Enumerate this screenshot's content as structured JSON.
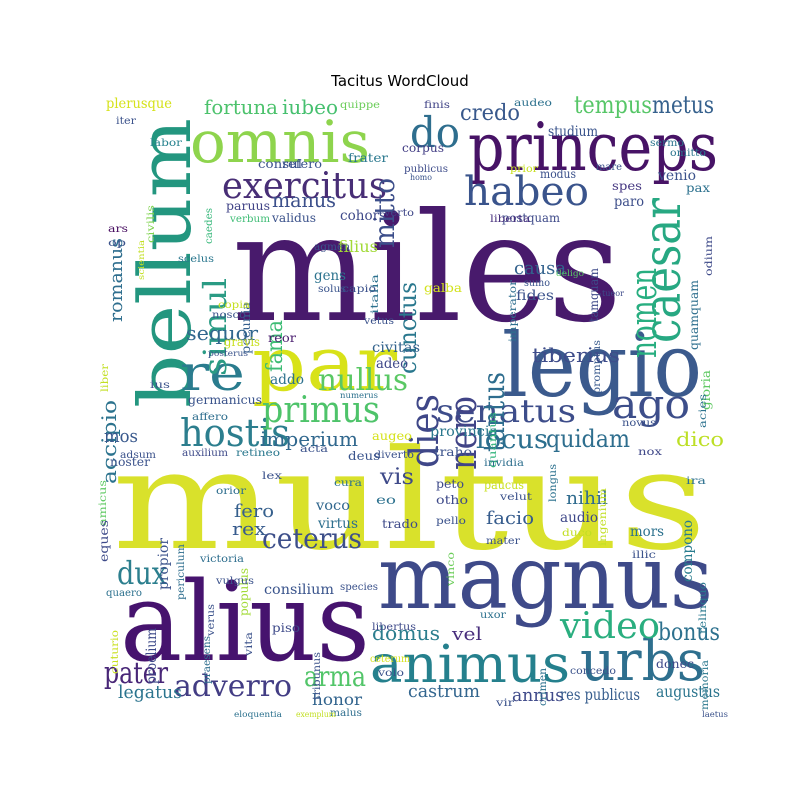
{
  "chart_data": {
    "type": "wordcloud",
    "title": "Tacitus WordCloud",
    "palette": [
      "#440154",
      "#3b528b",
      "#21918c",
      "#5ec962",
      "#fde725"
    ],
    "words": [
      {
        "text": "multus",
        "color": "#d9e12b"
      },
      {
        "text": "miles",
        "color": "#481a6c"
      },
      {
        "text": "alius",
        "color": "#46136e"
      },
      {
        "text": "magnus",
        "color": "#3e4a89"
      },
      {
        "text": "legio",
        "color": "#3b5a8d"
      },
      {
        "text": "princeps",
        "color": "#471366"
      },
      {
        "text": "bellum",
        "color": "#23967f"
      },
      {
        "text": "par",
        "color": "#d8e219"
      },
      {
        "text": "omnis",
        "color": "#8ed44d"
      },
      {
        "text": "caesar",
        "color": "#27a882"
      },
      {
        "text": "urbs",
        "color": "#2e6f8e"
      },
      {
        "text": "animus",
        "color": "#25808d"
      },
      {
        "text": "re",
        "color": "#2a7c8e"
      },
      {
        "text": "exercitus",
        "color": "#482e76"
      },
      {
        "text": "habeo",
        "color": "#3a548c"
      },
      {
        "text": "senatus",
        "color": "#3d4d8a"
      },
      {
        "text": "hostis",
        "color": "#2c7e8e"
      },
      {
        "text": "primus",
        "color": "#4ec36a"
      },
      {
        "text": "video",
        "color": "#2aae7f"
      },
      {
        "text": "dies",
        "color": "#3f4788"
      },
      {
        "text": "nero",
        "color": "#414487"
      },
      {
        "text": "ago",
        "color": "#3d4e8a"
      },
      {
        "text": "do",
        "color": "#2e6e8e"
      },
      {
        "text": "nomen",
        "color": "#28ae80"
      },
      {
        "text": "simul",
        "color": "#2a9b84"
      },
      {
        "text": "ceterus",
        "color": "#3d4f8a"
      },
      {
        "text": "locus",
        "color": "#2b6f8e"
      },
      {
        "text": "adverro",
        "color": "#433d84"
      },
      {
        "text": "nullus",
        "color": "#5ac864"
      },
      {
        "text": "dux",
        "color": "#2c7f8e"
      },
      {
        "text": "pater",
        "color": "#482677"
      },
      {
        "text": "tantus",
        "color": "#2e6d8e"
      },
      {
        "text": "mitto",
        "color": "#3c4e8a"
      },
      {
        "text": "cunctus",
        "color": "#2a788e"
      },
      {
        "text": "arma",
        "color": "#52c569"
      },
      {
        "text": "bonus",
        "color": "#2d718e"
      },
      {
        "text": "quidam",
        "color": "#2e6e8e"
      },
      {
        "text": "tempus",
        "color": "#56c667"
      },
      {
        "text": "metus",
        "color": "#36618d"
      },
      {
        "text": "credo",
        "color": "#38588c"
      },
      {
        "text": "fortuna",
        "color": "#4cc26c"
      },
      {
        "text": "iubeo",
        "color": "#46c06f"
      },
      {
        "text": "imperium",
        "color": "#31688e"
      },
      {
        "text": "sequor",
        "color": "#31678e"
      },
      {
        "text": "fama",
        "color": "#3dbc74"
      },
      {
        "text": "vis",
        "color": "#3e4a89"
      },
      {
        "text": "dico",
        "color": "#bddf26"
      },
      {
        "text": "domus",
        "color": "#2c7e8e"
      },
      {
        "text": "tiberius",
        "color": "#3e4c8a"
      },
      {
        "text": "manus",
        "color": "#3c508b"
      },
      {
        "text": "causa",
        "color": "#33628d"
      },
      {
        "text": "castrum",
        "color": "#32658e"
      },
      {
        "text": "legatus",
        "color": "#2b748e"
      },
      {
        "text": "romanus",
        "color": "#2e6e8e"
      },
      {
        "text": "accipio",
        "color": "#2c738e"
      },
      {
        "text": "fero",
        "color": "#36608d"
      },
      {
        "text": "rex",
        "color": "#375b8d"
      },
      {
        "text": "facio",
        "color": "#365c8d"
      },
      {
        "text": "nihil",
        "color": "#2f6b8e"
      },
      {
        "text": "mos",
        "color": "#38588c"
      },
      {
        "text": "vel",
        "color": "#472d7b"
      },
      {
        "text": "honor",
        "color": "#32648e"
      },
      {
        "text": "annus",
        "color": "#3e4989"
      },
      {
        "text": "res publicus",
        "color": "#365d8d"
      },
      {
        "text": "augustus",
        "color": "#2b758e"
      },
      {
        "text": "cohors",
        "color": "#3e4989"
      },
      {
        "text": "gens",
        "color": "#2c738e"
      },
      {
        "text": "fides",
        "color": "#3b528b"
      },
      {
        "text": "civitas",
        "color": "#33638d"
      },
      {
        "text": "adeo",
        "color": "#3f4889"
      },
      {
        "text": "provincia",
        "color": "#2a778e"
      },
      {
        "text": "consilium",
        "color": "#3a548c"
      },
      {
        "text": "voco",
        "color": "#31678e"
      },
      {
        "text": "virtus",
        "color": "#2e6f8e"
      },
      {
        "text": "audio",
        "color": "#3f4889"
      },
      {
        "text": "mors",
        "color": "#2c718e"
      },
      {
        "text": "pecunia",
        "color": "#355f8d"
      },
      {
        "text": "filius",
        "color": "#a2da37"
      },
      {
        "text": "quantus",
        "color": "#31b57b"
      },
      {
        "text": "copia",
        "color": "#c5e021"
      },
      {
        "text": "gravis",
        "color": "#c8e020"
      },
      {
        "text": "germanicus",
        "color": "#3a538b"
      },
      {
        "text": "addo",
        "color": "#2d718e"
      },
      {
        "text": "reor",
        "color": "#481b6d"
      },
      {
        "text": "plerusque",
        "color": "#d5e21a"
      },
      {
        "text": "venio",
        "color": "#3b528b"
      },
      {
        "text": "spes",
        "color": "#453781"
      },
      {
        "text": "paro",
        "color": "#3d4e8a"
      },
      {
        "text": "quamquam",
        "color": "#2e6f8e"
      },
      {
        "text": "odium",
        "color": "#3e4a89"
      },
      {
        "text": "pax",
        "color": "#2c718e"
      },
      {
        "text": "gloria",
        "color": "#5ec962"
      },
      {
        "text": "acies",
        "color": "#2c728e"
      },
      {
        "text": "novus",
        "color": "#3b528b"
      },
      {
        "text": "nox",
        "color": "#3f4788"
      },
      {
        "text": "compono",
        "color": "#287c8e"
      },
      {
        "text": "ira",
        "color": "#2d708e"
      },
      {
        "text": "relinquo",
        "color": "#2a788e"
      },
      {
        "text": "studium",
        "color": "#3a548c"
      },
      {
        "text": "audeo",
        "color": "#2d718e"
      },
      {
        "text": "sermo",
        "color": "#2b748e"
      },
      {
        "text": "omitto",
        "color": "#2b748e"
      },
      {
        "text": "prior",
        "color": "#c9e020"
      },
      {
        "text": "modus",
        "color": "#3b518b"
      },
      {
        "text": "mare",
        "color": "#3b518b"
      },
      {
        "text": "finis",
        "color": "#414487"
      },
      {
        "text": "quippe",
        "color": "#6ccd5a"
      },
      {
        "text": "labor",
        "color": "#26828e"
      },
      {
        "text": "iter",
        "color": "#3b528b"
      },
      {
        "text": "consul",
        "color": "#3b518b"
      },
      {
        "text": "refero",
        "color": "#3a548c"
      },
      {
        "text": "frater",
        "color": "#2a788e"
      },
      {
        "text": "corpus",
        "color": "#433e85"
      },
      {
        "text": "publicus",
        "color": "#3e4c8a"
      },
      {
        "text": "homo",
        "color": "#3a548c"
      },
      {
        "text": "paruus",
        "color": "#414487"
      },
      {
        "text": "verbum",
        "color": "#3dbc74"
      },
      {
        "text": "validus",
        "color": "#3b528b"
      },
      {
        "text": "verto",
        "color": "#3f4788"
      },
      {
        "text": "postquam",
        "color": "#3e4a89"
      },
      {
        "text": "liberta",
        "color": "#472f7d"
      },
      {
        "text": "civilis",
        "color": "#7fd34e"
      },
      {
        "text": "caedes",
        "color": "#35b779"
      },
      {
        "text": "scientia",
        "color": "#c2df23"
      },
      {
        "text": "ars",
        "color": "#470d60"
      },
      {
        "text": "op",
        "color": "#3b528b"
      },
      {
        "text": "agmen",
        "color": "#3a538b"
      },
      {
        "text": "italia",
        "color": "#2c718e"
      },
      {
        "text": "imperator",
        "color": "#2e6e8e"
      },
      {
        "text": "tamquam",
        "color": "#3e4a89"
      },
      {
        "text": "scelus",
        "color": "#2a778e"
      },
      {
        "text": "solus",
        "color": "#3a548c"
      },
      {
        "text": "capio",
        "color": "#3b518b"
      },
      {
        "text": "galba",
        "color": "#d2e21b"
      },
      {
        "text": "sumo",
        "color": "#3a548c"
      },
      {
        "text": "deligo",
        "color": "#5ac864"
      },
      {
        "text": "nosco",
        "color": "#3b528b"
      },
      {
        "text": "vetus",
        "color": "#3b528b"
      },
      {
        "text": "promptus",
        "color": "#38598c"
      },
      {
        "text": "tueor",
        "color": "#3e4a89"
      },
      {
        "text": "posterus",
        "color": "#3a548c"
      },
      {
        "text": "liber",
        "color": "#c2df23"
      },
      {
        "text": "ius",
        "color": "#3b528b"
      },
      {
        "text": "numerus",
        "color": "#2c718e"
      },
      {
        "text": "affero",
        "color": "#2e6e8e"
      },
      {
        "text": "noster",
        "color": "#3b528b"
      },
      {
        "text": "adsum",
        "color": "#3b528b"
      },
      {
        "text": "auxilium",
        "color": "#3e4a89"
      },
      {
        "text": "retineo",
        "color": "#2a788e"
      },
      {
        "text": "acta",
        "color": "#3b528b"
      },
      {
        "text": "deus",
        "color": "#3a548c"
      },
      {
        "text": "diverto",
        "color": "#3b528b"
      },
      {
        "text": "augeo",
        "color": "#d5e21a"
      },
      {
        "text": "traho",
        "color": "#3b528b"
      },
      {
        "text": "invidia",
        "color": "#2e6f8e"
      },
      {
        "text": "longus",
        "color": "#2c718e"
      },
      {
        "text": "ingenium",
        "color": "#c2df23"
      },
      {
        "text": "amicus",
        "color": "#5ec962"
      },
      {
        "text": "lex",
        "color": "#3b528b"
      },
      {
        "text": "orior",
        "color": "#2e6e8e"
      },
      {
        "text": "cura",
        "color": "#2c718e"
      },
      {
        "text": "eo",
        "color": "#2c718e"
      },
      {
        "text": "peto",
        "color": "#3e4a89"
      },
      {
        "text": "otho",
        "color": "#3e4a89"
      },
      {
        "text": "paucus",
        "color": "#c9e020"
      },
      {
        "text": "velut",
        "color": "#3b528b"
      },
      {
        "text": "eques",
        "color": "#3e4a89"
      },
      {
        "text": "propior",
        "color": "#3b528b"
      },
      {
        "text": "periculum",
        "color": "#2e6e8e"
      },
      {
        "text": "populus",
        "color": "#a2da37"
      },
      {
        "text": "trado",
        "color": "#3e4a89"
      },
      {
        "text": "pello",
        "color": "#3b528b"
      },
      {
        "text": "vinco",
        "color": "#6ccd5a"
      },
      {
        "text": "mater",
        "color": "#3b528b"
      },
      {
        "text": "duco",
        "color": "#c2df23"
      },
      {
        "text": "illic",
        "color": "#3b528b"
      },
      {
        "text": "victoria",
        "color": "#2e6e8e"
      },
      {
        "text": "vulgus",
        "color": "#3b528b"
      },
      {
        "text": "species",
        "color": "#3b528b"
      },
      {
        "text": "quaero",
        "color": "#2c718e"
      },
      {
        "text": "verus",
        "color": "#3b528b"
      },
      {
        "text": "proelium",
        "color": "#3e4a89"
      },
      {
        "text": "praesens",
        "color": "#2e6e8e"
      },
      {
        "text": "vita",
        "color": "#3b528b"
      },
      {
        "text": "piso",
        "color": "#3e4a89"
      },
      {
        "text": "tribunus",
        "color": "#3b528b"
      },
      {
        "text": "ceterum",
        "color": "#d5e21a"
      },
      {
        "text": "volo",
        "color": "#3b528b"
      },
      {
        "text": "libertus",
        "color": "#3e4a89"
      },
      {
        "text": "uxor",
        "color": "#2c718e"
      },
      {
        "text": "crimen",
        "color": "#2c718e"
      },
      {
        "text": "concedo",
        "color": "#3b528b"
      },
      {
        "text": "donec",
        "color": "#3e4a89"
      },
      {
        "text": "memoria",
        "color": "#2a788e"
      },
      {
        "text": "cuturio",
        "color": "#c9e020"
      },
      {
        "text": "malus",
        "color": "#2e6e8e"
      },
      {
        "text": "exemplum",
        "color": "#c2df23"
      },
      {
        "text": "eloquentia",
        "color": "#2c718e"
      },
      {
        "text": "vir",
        "color": "#3b528b"
      },
      {
        "text": "laetus",
        "color": "#3b528b"
      }
    ]
  }
}
